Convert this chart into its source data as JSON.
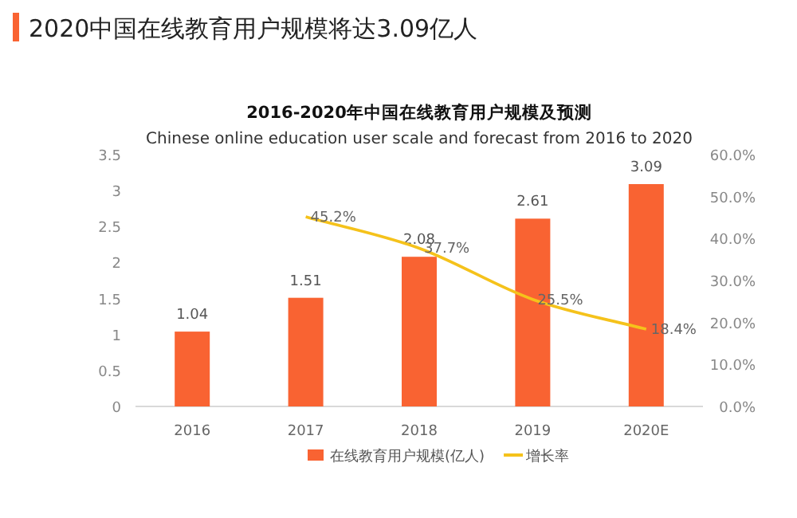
{
  "chart_data": {
    "type": "bar",
    "title": "2020中国在线教育用户规模将达3.09亿人",
    "subtitle": "2016-2020年中国在线教育用户规模及预测",
    "annotations": [
      "Chinese online education user scale and forecast from 2016 to 2020"
    ],
    "categories": [
      "2016",
      "2017",
      "2018",
      "2019",
      "2020E"
    ],
    "series": [
      {
        "name": "在线教育用户规模(亿人)",
        "color": "#f96332",
        "values": [
          1.04,
          1.51,
          2.08,
          2.61,
          3.09
        ]
      },
      {
        "name": "增长率",
        "type": "line",
        "axis": "y2",
        "color": "#f5c21b",
        "values": [
          null,
          45.2,
          37.7,
          25.5,
          18.4
        ],
        "value_labels": [
          null,
          "45.2%",
          "37.7%",
          "25.5%",
          "18.4%"
        ]
      }
    ],
    "ylim": [
      0,
      3.5
    ],
    "yticks": [
      0,
      0.5,
      1,
      1.5,
      2,
      2.5,
      3,
      3.5
    ],
    "y2lim": [
      0,
      60
    ],
    "y2ticks": [
      {
        "value": 0,
        "label": "0.0%"
      },
      {
        "value": 10,
        "label": "10.0%"
      },
      {
        "value": 20,
        "label": "20.0%"
      },
      {
        "value": 30,
        "label": "30.0%"
      },
      {
        "value": 40,
        "label": "40.0%"
      },
      {
        "value": 50,
        "label": "50.0%"
      },
      {
        "value": 60,
        "label": "60.0%"
      }
    ],
    "data_labels": true,
    "legend": "bottom",
    "grid": false,
    "marker": "none",
    "line_style": "solid"
  }
}
